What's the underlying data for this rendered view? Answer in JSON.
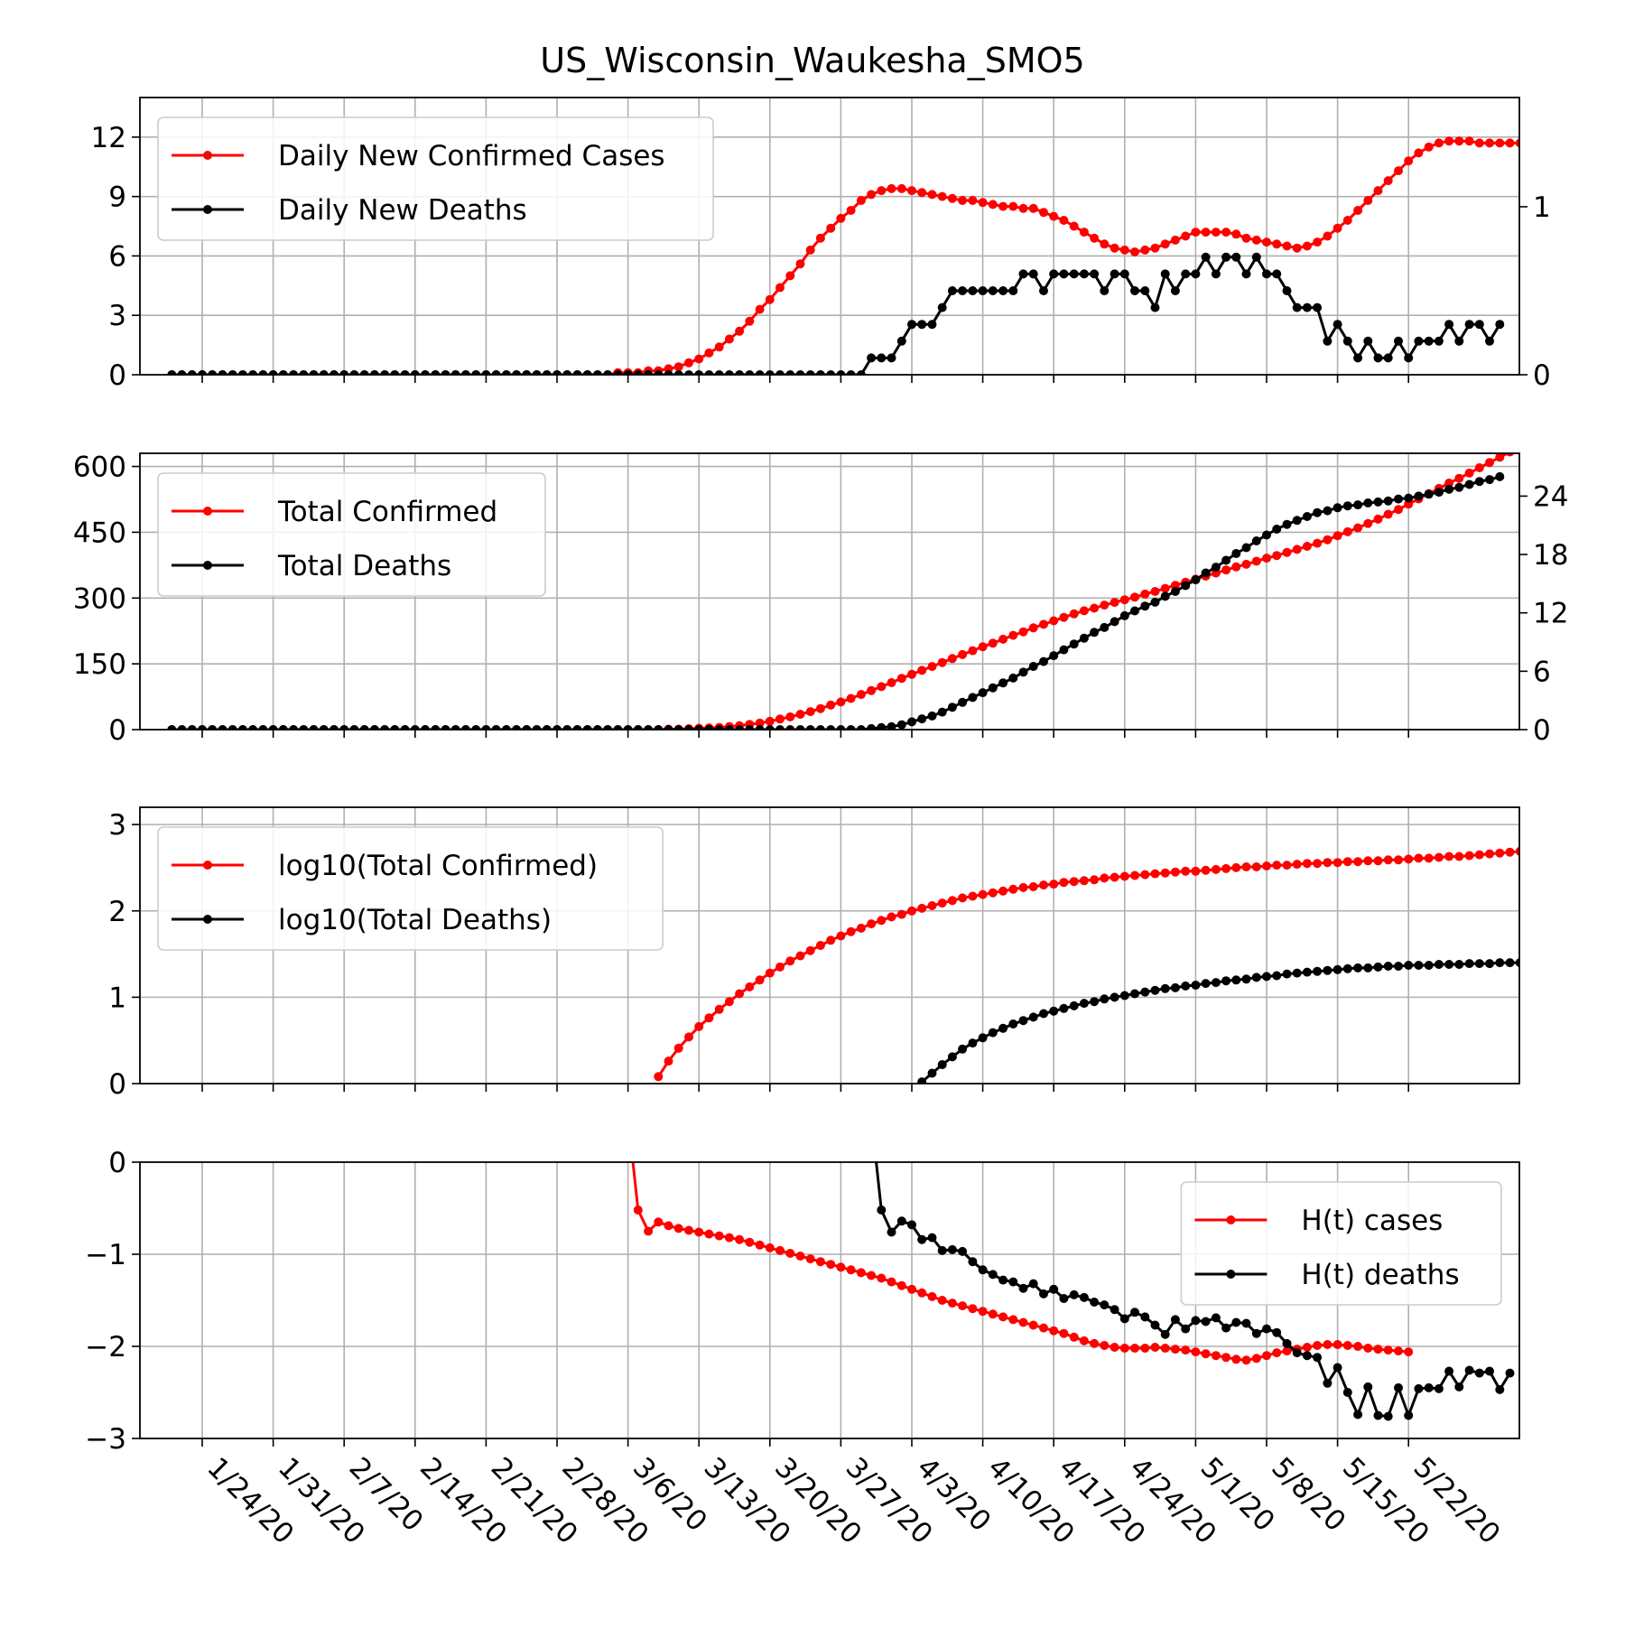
{
  "title": "US_Wisconsin_Waukesha_SMO5",
  "colors": {
    "cases": "#ff0000",
    "deaths": "#000000",
    "grid": "#b0b0b0",
    "legend_border": "#cccccc"
  },
  "chart_data": [
    {
      "type": "line",
      "x_start": "1/21/20",
      "x_ticks": [
        "1/24/20",
        "1/31/20",
        "2/7/20",
        "2/14/20",
        "2/21/20",
        "2/28/20",
        "3/6/20",
        "3/13/20",
        "3/20/20",
        "3/27/20",
        "4/3/20",
        "4/10/20",
        "4/17/20",
        "4/24/20",
        "5/1/20",
        "5/8/20",
        "5/15/20",
        "5/22/20"
      ],
      "ylim": [
        0,
        14
      ],
      "yticks": [
        "0",
        "3",
        "6",
        "9",
        "12"
      ],
      "y2lim": [
        0,
        1.65
      ],
      "y2ticks": [
        "0",
        "1"
      ],
      "grid": true,
      "legend": "top-left",
      "series": [
        {
          "name": "Daily New Confirmed Cases",
          "axis": "left",
          "values": [
            0,
            0,
            0,
            0,
            0,
            0,
            0,
            0,
            0,
            0,
            0,
            0,
            0,
            0,
            0,
            0,
            0,
            0,
            0,
            0,
            0,
            0,
            0,
            0,
            0,
            0,
            0,
            0,
            0,
            0,
            0,
            0,
            0,
            0,
            0,
            0,
            0,
            0,
            0,
            0,
            0,
            0,
            0,
            0,
            0.1,
            0.1,
            0.1,
            0.2,
            0.2,
            0.3,
            0.4,
            0.6,
            0.8,
            1.1,
            1.4,
            1.8,
            2.2,
            2.7,
            3.3,
            3.8,
            4.4,
            5.0,
            5.6,
            6.3,
            6.9,
            7.4,
            7.9,
            8.3,
            8.8,
            9.1,
            9.3,
            9.4,
            9.4,
            9.3,
            9.2,
            9.1,
            9.0,
            8.9,
            8.8,
            8.8,
            8.7,
            8.6,
            8.5,
            8.5,
            8.4,
            8.4,
            8.2,
            8.0,
            7.8,
            7.5,
            7.2,
            6.9,
            6.6,
            6.4,
            6.3,
            6.2,
            6.3,
            6.4,
            6.6,
            6.8,
            7.0,
            7.2,
            7.2,
            7.2,
            7.2,
            7.1,
            6.9,
            6.8,
            6.7,
            6.6,
            6.5,
            6.4,
            6.5,
            6.7,
            7.0,
            7.4,
            7.8,
            8.3,
            8.8,
            9.3,
            9.8,
            10.3,
            10.8,
            11.2,
            11.5,
            11.7,
            11.8,
            11.8,
            11.8,
            11.7,
            11.7,
            11.7,
            11.7,
            11.7,
            11.8,
            11.7
          ]
        },
        {
          "name": "Daily New Deaths",
          "axis": "right",
          "values": [
            0,
            0,
            0,
            0,
            0,
            0,
            0,
            0,
            0,
            0,
            0,
            0,
            0,
            0,
            0,
            0,
            0,
            0,
            0,
            0,
            0,
            0,
            0,
            0,
            0,
            0,
            0,
            0,
            0,
            0,
            0,
            0,
            0,
            0,
            0,
            0,
            0,
            0,
            0,
            0,
            0,
            0,
            0,
            0,
            0,
            0,
            0,
            0,
            0,
            0,
            0,
            0,
            0,
            0,
            0,
            0,
            0,
            0,
            0,
            0,
            0,
            0,
            0,
            0,
            0,
            0,
            0,
            0,
            0,
            0.1,
            0.1,
            0.1,
            0.2,
            0.3,
            0.3,
            0.3,
            0.4,
            0.5,
            0.5,
            0.5,
            0.5,
            0.5,
            0.5,
            0.5,
            0.6,
            0.6,
            0.5,
            0.6,
            0.6,
            0.6,
            0.6,
            0.6,
            0.5,
            0.6,
            0.6,
            0.5,
            0.5,
            0.4,
            0.6,
            0.5,
            0.6,
            0.6,
            0.7,
            0.6,
            0.7,
            0.7,
            0.6,
            0.7,
            0.6,
            0.6,
            0.5,
            0.4,
            0.4,
            0.4,
            0.2,
            0.3,
            0.2,
            0.1,
            0.2,
            0.1,
            0.1,
            0.2,
            0.1,
            0.2,
            0.2,
            0.2,
            0.3,
            0.2,
            0.3,
            0.3,
            0.2,
            0.3
          ]
        }
      ]
    },
    {
      "type": "line",
      "ylim": [
        0,
        630
      ],
      "yticks": [
        "0",
        "150",
        "300",
        "450",
        "600"
      ],
      "y2lim": [
        0,
        28.4
      ],
      "y2ticks": [
        "0",
        "6",
        "12",
        "18",
        "24"
      ],
      "grid": true,
      "legend": "top-left",
      "series": [
        {
          "name": "Total Confirmed",
          "axis": "left",
          "values": [
            0,
            0,
            0,
            0,
            0,
            0,
            0,
            0,
            0,
            0,
            0,
            0,
            0,
            0,
            0,
            0,
            0,
            0,
            0,
            0,
            0,
            0,
            0,
            0,
            0,
            0,
            0,
            0,
            0,
            0,
            0,
            0,
            0,
            0,
            0,
            0,
            0,
            0,
            0,
            0,
            0,
            0,
            0,
            0,
            0,
            0,
            0,
            0,
            0,
            1,
            1,
            2,
            3,
            4,
            5,
            7,
            9,
            12,
            15,
            19,
            24,
            29,
            35,
            41,
            48,
            56,
            63,
            71,
            80,
            89,
            98,
            107,
            117,
            126,
            135,
            144,
            153,
            162,
            171,
            180,
            189,
            197,
            206,
            215,
            223,
            232,
            240,
            248,
            256,
            264,
            271,
            277,
            284,
            290,
            296,
            302,
            309,
            315,
            322,
            329,
            336,
            343,
            350,
            357,
            364,
            371,
            377,
            384,
            391,
            397,
            404,
            411,
            418,
            425,
            433,
            442,
            451,
            460,
            470,
            480,
            491,
            502,
            514,
            526,
            538,
            550,
            562,
            573,
            585,
            597,
            609,
            621,
            633,
            645
          ]
        },
        {
          "name": "Total Deaths",
          "axis": "right",
          "values": [
            0,
            0,
            0,
            0,
            0,
            0,
            0,
            0,
            0,
            0,
            0,
            0,
            0,
            0,
            0,
            0,
            0,
            0,
            0,
            0,
            0,
            0,
            0,
            0,
            0,
            0,
            0,
            0,
            0,
            0,
            0,
            0,
            0,
            0,
            0,
            0,
            0,
            0,
            0,
            0,
            0,
            0,
            0,
            0,
            0,
            0,
            0,
            0,
            0,
            0,
            0,
            0,
            0,
            0,
            0,
            0,
            0,
            0,
            0,
            0,
            0,
            0,
            0,
            0,
            0,
            0,
            0,
            0,
            0,
            0.1,
            0.2,
            0.3,
            0.5,
            0.8,
            1.1,
            1.4,
            1.8,
            2.3,
            2.8,
            3.3,
            3.8,
            4.3,
            4.8,
            5.3,
            5.9,
            6.5,
            7.0,
            7.6,
            8.2,
            8.8,
            9.4,
            10.0,
            10.5,
            11.1,
            11.7,
            12.2,
            12.7,
            13.1,
            13.7,
            14.2,
            14.8,
            15.4,
            16.1,
            16.7,
            17.4,
            18.1,
            18.7,
            19.4,
            20.0,
            20.6,
            21.1,
            21.5,
            21.9,
            22.3,
            22.5,
            22.8,
            23.0,
            23.1,
            23.3,
            23.4,
            23.5,
            23.7,
            23.8,
            24.0,
            24.2,
            24.4,
            24.7,
            24.9,
            25.2,
            25.5,
            25.7,
            26.0
          ]
        }
      ]
    },
    {
      "type": "line",
      "ylim": [
        0,
        3.2
      ],
      "yticks": [
        "0",
        "1",
        "2",
        "3"
      ],
      "grid": true,
      "legend": "top-left",
      "series": [
        {
          "name": "log10(Total Confirmed)",
          "x_offset": 48,
          "values": [
            0.08,
            0.26,
            0.41,
            0.54,
            0.66,
            0.76,
            0.86,
            0.95,
            1.04,
            1.12,
            1.2,
            1.28,
            1.35,
            1.42,
            1.48,
            1.54,
            1.6,
            1.66,
            1.71,
            1.76,
            1.8,
            1.85,
            1.89,
            1.93,
            1.96,
            2.0,
            2.03,
            2.06,
            2.09,
            2.12,
            2.15,
            2.17,
            2.19,
            2.21,
            2.23,
            2.25,
            2.27,
            2.28,
            2.3,
            2.31,
            2.33,
            2.34,
            2.35,
            2.36,
            2.38,
            2.39,
            2.4,
            2.41,
            2.42,
            2.43,
            2.44,
            2.45,
            2.46,
            2.46,
            2.47,
            2.48,
            2.49,
            2.5,
            2.51,
            2.51,
            2.52,
            2.53,
            2.53,
            2.54,
            2.55,
            2.55,
            2.56,
            2.56,
            2.57,
            2.57,
            2.58,
            2.58,
            2.59,
            2.59,
            2.6,
            2.61,
            2.61,
            2.62,
            2.63,
            2.63,
            2.64,
            2.65,
            2.66,
            2.67,
            2.68,
            2.69,
            2.7,
            2.71,
            2.72,
            2.73,
            2.74,
            2.75,
            2.76,
            2.77
          ]
        },
        {
          "name": "log10(Total Deaths)",
          "x_offset": 74,
          "values": [
            0.02,
            0.12,
            0.22,
            0.31,
            0.4,
            0.47,
            0.53,
            0.59,
            0.64,
            0.69,
            0.73,
            0.77,
            0.81,
            0.84,
            0.87,
            0.9,
            0.93,
            0.95,
            0.98,
            1.0,
            1.02,
            1.04,
            1.06,
            1.08,
            1.1,
            1.11,
            1.13,
            1.14,
            1.16,
            1.17,
            1.19,
            1.2,
            1.21,
            1.23,
            1.24,
            1.25,
            1.27,
            1.28,
            1.29,
            1.3,
            1.31,
            1.32,
            1.33,
            1.34,
            1.34,
            1.35,
            1.36,
            1.36,
            1.37,
            1.37,
            1.37,
            1.38,
            1.38,
            1.38,
            1.39,
            1.39,
            1.39,
            1.4,
            1.4,
            1.4,
            1.41,
            1.41,
            1.41,
            1.42
          ]
        }
      ]
    },
    {
      "type": "line",
      "ylim": [
        -3,
        0
      ],
      "yticks": [
        "−3",
        "−2",
        "−1",
        "0"
      ],
      "grid": true,
      "legend": "top-right",
      "series": [
        {
          "name": "H(t) cases",
          "x_offset": 45,
          "values": [
            0.5,
            -0.52,
            -0.75,
            -0.65,
            -0.69,
            -0.72,
            -0.74,
            -0.76,
            -0.78,
            -0.8,
            -0.82,
            -0.84,
            -0.87,
            -0.9,
            -0.93,
            -0.96,
            -0.99,
            -1.02,
            -1.05,
            -1.08,
            -1.11,
            -1.14,
            -1.17,
            -1.2,
            -1.23,
            -1.26,
            -1.3,
            -1.34,
            -1.38,
            -1.42,
            -1.46,
            -1.5,
            -1.53,
            -1.56,
            -1.59,
            -1.62,
            -1.65,
            -1.68,
            -1.71,
            -1.74,
            -1.77,
            -1.8,
            -1.83,
            -1.86,
            -1.9,
            -1.94,
            -1.97,
            -1.99,
            -2.01,
            -2.02,
            -2.02,
            -2.02,
            -2.01,
            -2.02,
            -2.03,
            -2.04,
            -2.06,
            -2.08,
            -2.1,
            -2.12,
            -2.14,
            -2.15,
            -2.13,
            -2.1,
            -2.07,
            -2.05,
            -2.03,
            -2.01,
            -1.99,
            -1.98,
            -1.98,
            -1.99,
            -2.0,
            -2.02,
            -2.03,
            -2.04,
            -2.05,
            -2.06
          ]
        },
        {
          "name": "H(t) deaths",
          "x_offset": 69,
          "values": [
            0.5,
            -0.52,
            -0.76,
            -0.64,
            -0.68,
            -0.84,
            -0.82,
            -0.96,
            -0.95,
            -0.97,
            -1.08,
            -1.17,
            -1.22,
            -1.28,
            -1.3,
            -1.37,
            -1.32,
            -1.43,
            -1.38,
            -1.48,
            -1.44,
            -1.47,
            -1.52,
            -1.55,
            -1.6,
            -1.7,
            -1.63,
            -1.68,
            -1.77,
            -1.87,
            -1.71,
            -1.81,
            -1.72,
            -1.73,
            -1.69,
            -1.8,
            -1.74,
            -1.75,
            -1.86,
            -1.81,
            -1.85,
            -1.97,
            -2.07,
            -2.1,
            -2.12,
            -2.4,
            -2.23,
            -2.5,
            -2.74,
            -2.44,
            -2.75,
            -2.76,
            -2.45,
            -2.75,
            -2.46,
            -2.45,
            -2.46,
            -2.27,
            -2.44,
            -2.26,
            -2.29,
            -2.27,
            -2.47,
            -2.29
          ]
        }
      ]
    }
  ]
}
